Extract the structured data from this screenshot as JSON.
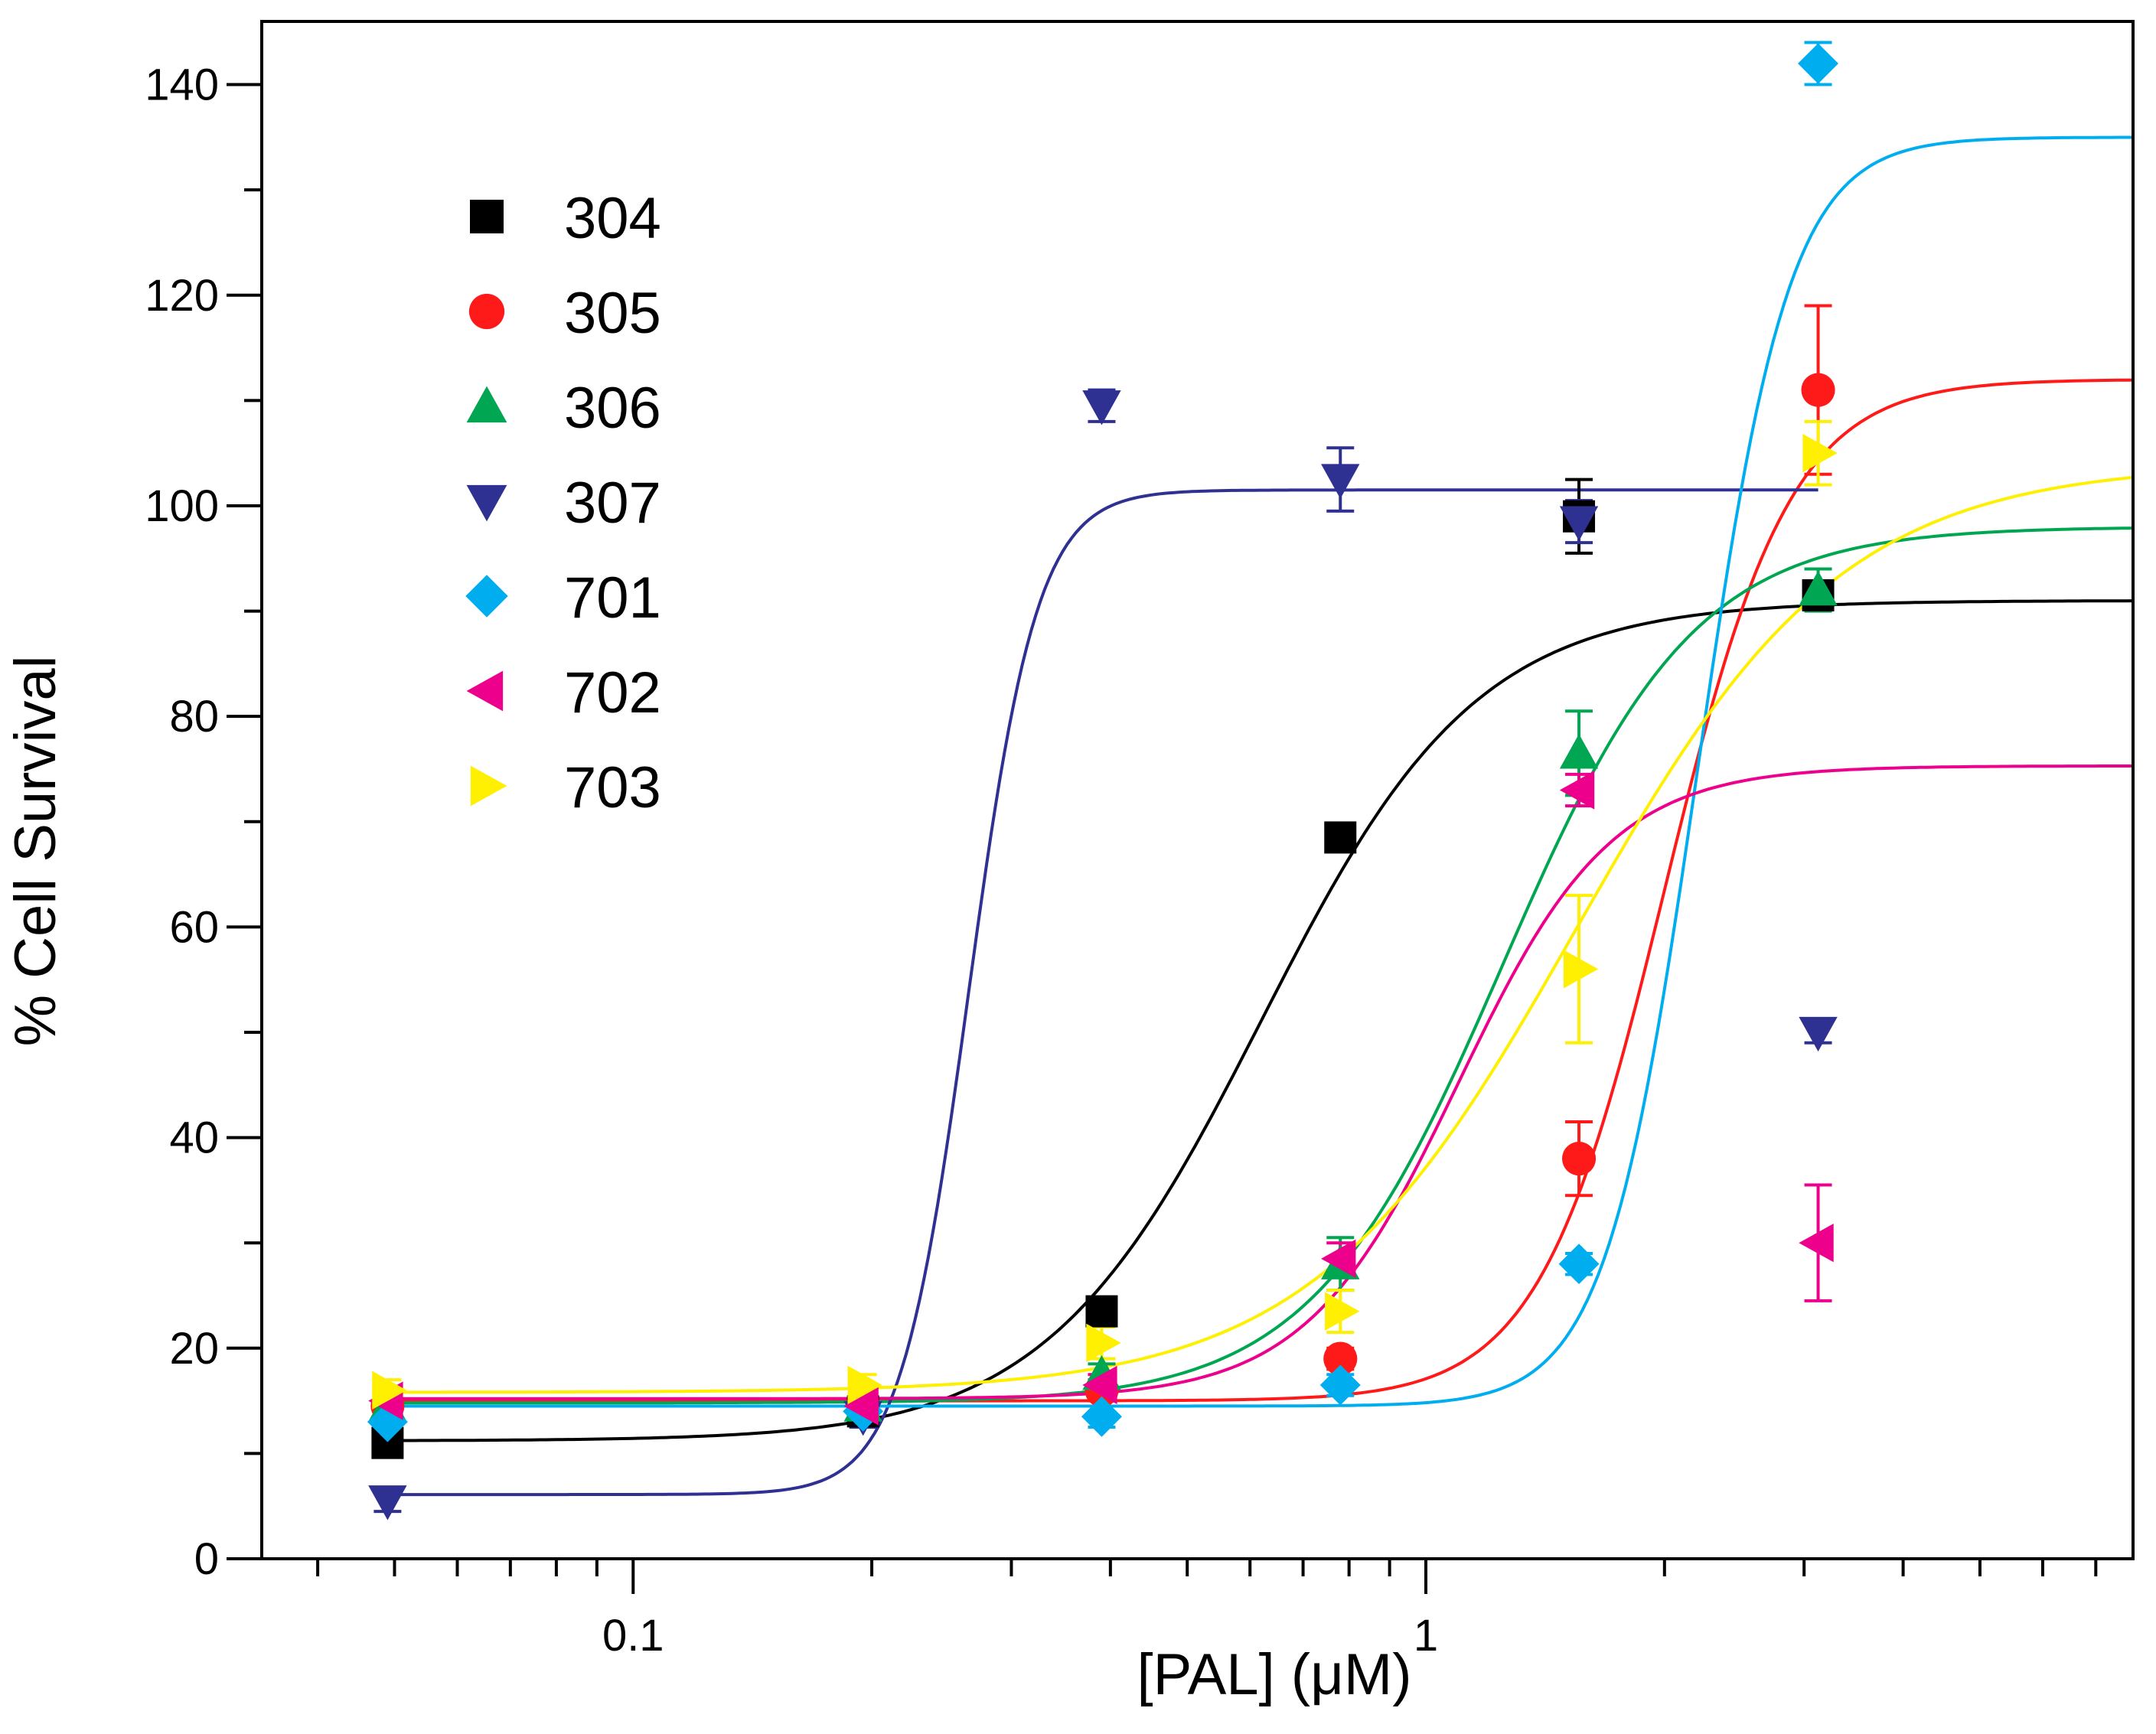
{
  "chart_data": {
    "type": "scatter",
    "xscale": "log",
    "xlabel": "[PAL] (μM)",
    "ylabel": "% Cell Survival",
    "xlim": [
      0.034,
      7.8
    ],
    "ylim": [
      0,
      146
    ],
    "xticks": [
      {
        "value": 0.1,
        "label": "0.1"
      },
      {
        "value": 1,
        "label": "1"
      }
    ],
    "yticks": [
      {
        "value": 0,
        "label": "0"
      },
      {
        "value": 20,
        "label": "20"
      },
      {
        "value": 40,
        "label": "40"
      },
      {
        "value": 60,
        "label": "60"
      },
      {
        "value": 80,
        "label": "80"
      },
      {
        "value": 100,
        "label": "100"
      },
      {
        "value": 120,
        "label": "120"
      },
      {
        "value": 140,
        "label": "140"
      }
    ],
    "legend_position": "top-left",
    "x": [
      0.049,
      0.195,
      0.39,
      0.78,
      1.56,
      3.125
    ],
    "series": [
      {
        "name": "304",
        "color": "#000000",
        "marker": "square",
        "values": [
          11,
          14,
          23.5,
          68.5,
          99,
          91.5
        ],
        "errors": [
          1,
          1,
          1,
          1,
          3.5,
          1
        ],
        "fit": {
          "bottom": 11.2,
          "top": 91,
          "ec50": 0.62,
          "hill": 3.2,
          "xmin": 0.049,
          "xmax": 7.8
        }
      },
      {
        "name": "305",
        "color": "#ff1a1a",
        "marker": "circle",
        "values": [
          14.5,
          14.5,
          16,
          19,
          38,
          111
        ],
        "errors": [
          1,
          1,
          1,
          1,
          3.5,
          8
        ],
        "fit": {
          "bottom": 15,
          "top": 112,
          "ec50": 2.0,
          "hill": 5.5,
          "xmin": 0.049,
          "xmax": 7.8
        }
      },
      {
        "name": "306",
        "color": "#00a651",
        "marker": "triangle-up",
        "values": [
          14.5,
          14.5,
          17.5,
          28,
          76.5,
          92
        ],
        "errors": [
          1,
          1,
          1,
          2.5,
          4,
          2
        ],
        "fit": {
          "bottom": 14.8,
          "top": 98,
          "ec50": 1.25,
          "hill": 3.6,
          "xmin": 0.049,
          "xmax": 7.8
        }
      },
      {
        "name": "307",
        "color": "#2e3192",
        "marker": "triangle-down",
        "values": [
          5.5,
          13.5,
          109.5,
          102.5,
          98.5,
          50
        ],
        "errors": [
          1,
          1,
          1.5,
          3,
          2,
          1
        ],
        "fit": {
          "bottom": 6.1,
          "top": 101.5,
          "ec50": 0.265,
          "hill": 10,
          "xmin": 0.049,
          "xmax": 3.125
        }
      },
      {
        "name": "701",
        "color": "#00aeef",
        "marker": "diamond",
        "values": [
          13,
          14,
          13.5,
          16.5,
          28,
          142
        ],
        "errors": [
          1,
          1,
          1,
          1,
          1,
          2
        ],
        "fit": {
          "bottom": 14.5,
          "top": 135,
          "ec50": 2.2,
          "hill": 7.5,
          "xmin": 0.049,
          "xmax": 7.8
        }
      },
      {
        "name": "702",
        "color": "#ec008c",
        "marker": "triangle-left",
        "values": [
          15,
          14.5,
          16.5,
          28.5,
          73,
          30
        ],
        "errors": [
          1,
          1,
          1,
          1.5,
          1.5,
          5.5
        ],
        "fit": {
          "bottom": 15.2,
          "top": 75.3,
          "ec50": 1.1,
          "hill": 4.5,
          "xmin": 0.049,
          "xmax": 7.8
        }
      },
      {
        "name": "703",
        "color": "#ffef00",
        "marker": "triangle-right",
        "values": [
          16,
          16.5,
          20.5,
          23.5,
          56,
          105
        ],
        "errors": [
          1,
          1,
          1.5,
          2,
          7,
          3
        ],
        "fit": {
          "bottom": 15.8,
          "top": 104,
          "ec50": 1.55,
          "hill": 2.6,
          "xmin": 0.049,
          "xmax": 7.8
        }
      }
    ]
  }
}
